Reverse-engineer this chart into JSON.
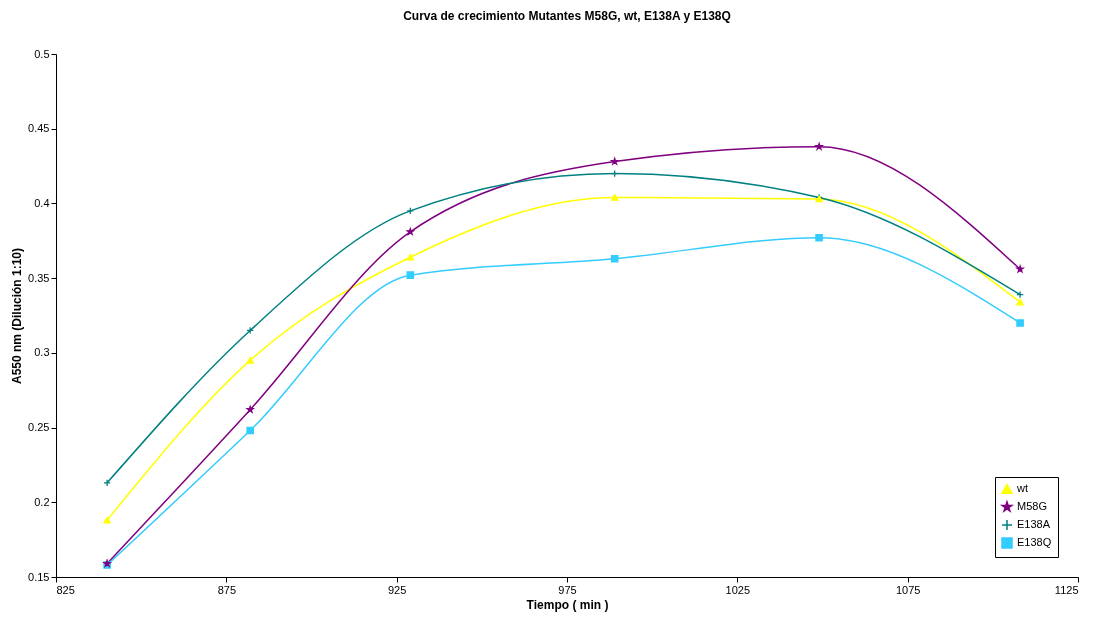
{
  "chart_data": {
    "type": "line",
    "title": "Curva de crecimiento Mutantes M58G, wt, E138A y E138Q",
    "xlabel": "Tiempo ( min )",
    "ylabel": "A550 nm (Dilución 1:10)",
    "x": [
      840,
      882,
      929,
      989,
      1049,
      1108
    ],
    "series": [
      {
        "name": "wt",
        "color": "#ffff00",
        "marker": "triangle",
        "values": [
          0.188,
          0.295,
          0.364,
          0.404,
          0.403,
          0.334
        ]
      },
      {
        "name": "M58G",
        "color": "#800080",
        "marker": "star",
        "values": [
          0.159,
          0.262,
          0.381,
          0.428,
          0.438,
          0.356
        ]
      },
      {
        "name": "E138A",
        "color": "#008080",
        "marker": "cross",
        "values": [
          0.213,
          0.315,
          0.395,
          0.42,
          0.404,
          0.339
        ]
      },
      {
        "name": "E138Q",
        "color": "#33ccff",
        "marker": "square",
        "values": [
          0.158,
          0.248,
          0.352,
          0.363,
          0.377,
          0.32
        ]
      }
    ],
    "xlim": [
      825,
      1125
    ],
    "xticks": [
      825,
      875,
      925,
      975,
      1025,
      1075,
      1125
    ],
    "ylim": [
      0.15,
      0.5
    ],
    "yticks": [
      0.15,
      0.2,
      0.25,
      0.3,
      0.35,
      0.4,
      0.45,
      0.5
    ],
    "grid": false,
    "legend": "bottom right",
    "line_style": "solid"
  }
}
